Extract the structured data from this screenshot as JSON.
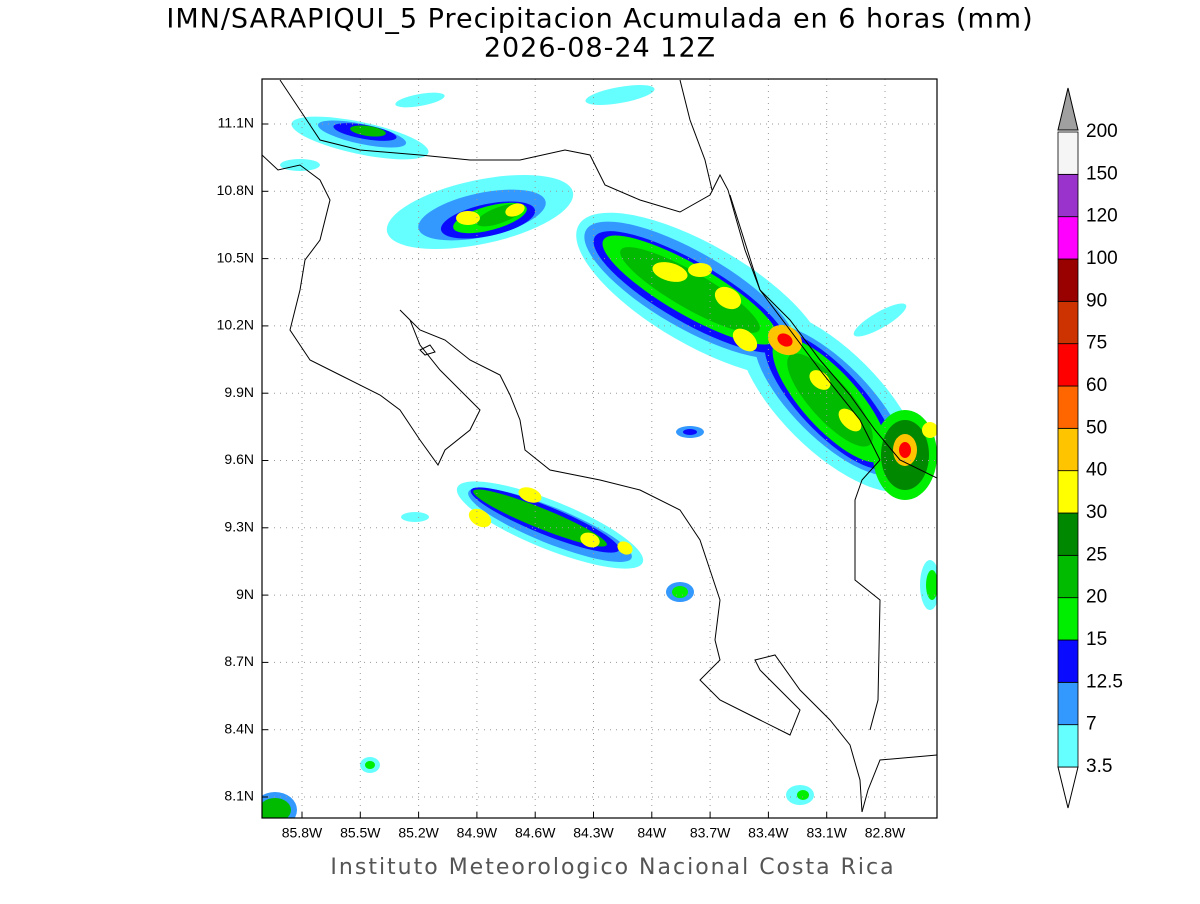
{
  "header": {
    "title": "IMN/SARAPIQUI_5 Precipitacion Acumulada en 6 horas (mm)",
    "subtitle": "2026-08-24 12Z"
  },
  "map": {
    "lon_ticks": [
      "85.8W",
      "85.5W",
      "85.2W",
      "84.9W",
      "84.6W",
      "84.3W",
      "84W",
      "83.7W",
      "83.4W",
      "83.1W",
      "82.8W"
    ],
    "lat_ticks": [
      "11.1N",
      "10.8N",
      "10.5N",
      "10.2N",
      "9.9N",
      "9.6N",
      "9.3N",
      "9N",
      "8.7N",
      "8.4N",
      "8.1N"
    ]
  },
  "colorbar": {
    "levels": [
      3.5,
      7,
      12.5,
      15,
      20,
      25,
      30,
      40,
      50,
      60,
      75,
      90,
      100,
      120,
      150,
      200
    ],
    "colors": [
      "#66ffff",
      "#3399ff",
      "#0a0aff",
      "#00ee00",
      "#00bb00",
      "#008800",
      "#ffff00",
      "#ffc400",
      "#ff6600",
      "#ff0000",
      "#cc3300",
      "#990000",
      "#ff00ff",
      "#9933cc",
      "#f5f5f5"
    ]
  },
  "footer": "Instituto Meteorologico Nacional Costa Rica"
}
